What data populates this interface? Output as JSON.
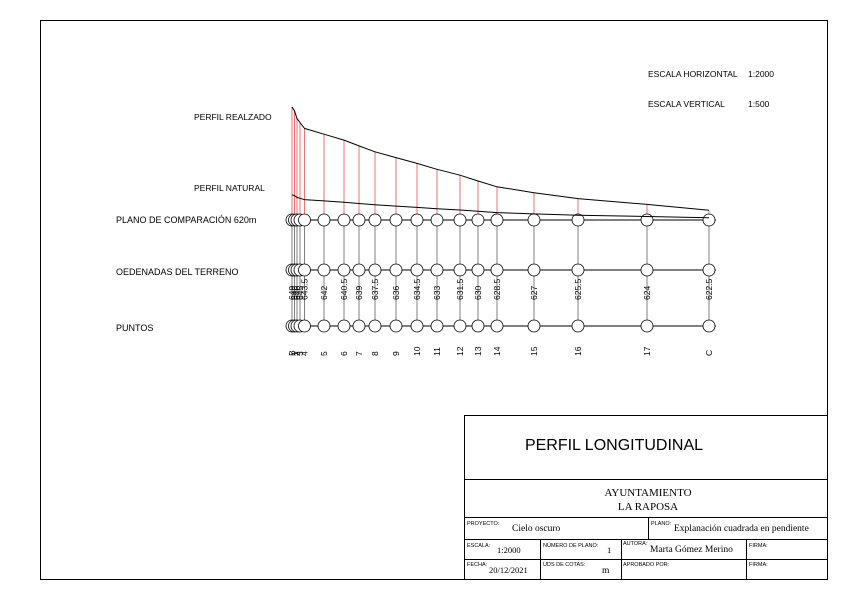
{
  "scales": {
    "horizontal_label": "ESCALA HORIZONTAL",
    "horizontal_value": "1:2000",
    "vertical_label": "ESCALA VERTICAL",
    "vertical_value": "1:500"
  },
  "profile": {
    "realzado_label": "PERFIL REALZADO",
    "natural_label": "PERFIL NATURAL",
    "comparison_label": "PLANO DE COMPARACIÓN  620m",
    "ordinates_label": "OEDENADAS DEL TERRENO",
    "points_label": "PUNTOS"
  },
  "chart_data": {
    "type": "line",
    "x_scale": "1:2000",
    "y_scale": "1:500",
    "datum": 620,
    "points": [
      {
        "name": "B",
        "elevation": "649"
      },
      {
        "name": "1",
        "elevation": "648"
      },
      {
        "name": "2",
        "elevation": "646"
      },
      {
        "name": "3",
        "elevation": "645"
      },
      {
        "name": "4",
        "elevation": "643.5"
      },
      {
        "name": "5",
        "elevation": "642"
      },
      {
        "name": "6",
        "elevation": "640.5"
      },
      {
        "name": "7",
        "elevation": "639"
      },
      {
        "name": "8",
        "elevation": "637.5"
      },
      {
        "name": "9",
        "elevation": "636"
      },
      {
        "name": "10",
        "elevation": "634.5"
      },
      {
        "name": "11",
        "elevation": "633"
      },
      {
        "name": "12",
        "elevation": "631.5"
      },
      {
        "name": "13",
        "elevation": "630"
      },
      {
        "name": "14",
        "elevation": "628.5"
      },
      {
        "name": "15",
        "elevation": "627"
      },
      {
        "name": "16",
        "elevation": "625.5"
      },
      {
        "name": "17",
        "elevation": "624"
      },
      {
        "name": "C",
        "elevation": "622.5"
      }
    ]
  },
  "title_block": {
    "title": "PERFIL LONGITUDINAL",
    "org_line1": "AYUNTAMIENTO",
    "org_line2": "LA RAPOSA",
    "proyecto_label": "PROYECTO:",
    "proyecto_value": "Cielo oscuro",
    "plano_label": "PLANO:",
    "plano_value": "Explanación cuadrada en pendiente",
    "escala_label": "ESCALA:",
    "escala_value": "1:2000",
    "numero_plano_label": "NÚMERO DE PLANO:",
    "numero_plano_value": "1",
    "autora_label": "AUTORA:",
    "autora_value": "Marta Gómez Merino",
    "firma_label": "FIRMA:",
    "fecha_label": "FECHA:",
    "fecha_value": "20/12/2021",
    "uds_label": "UDS DE COTAS:",
    "uds_value": "m",
    "aprobado_label": "APROBADO POR:",
    "firma2_label": "FIRMA:"
  }
}
